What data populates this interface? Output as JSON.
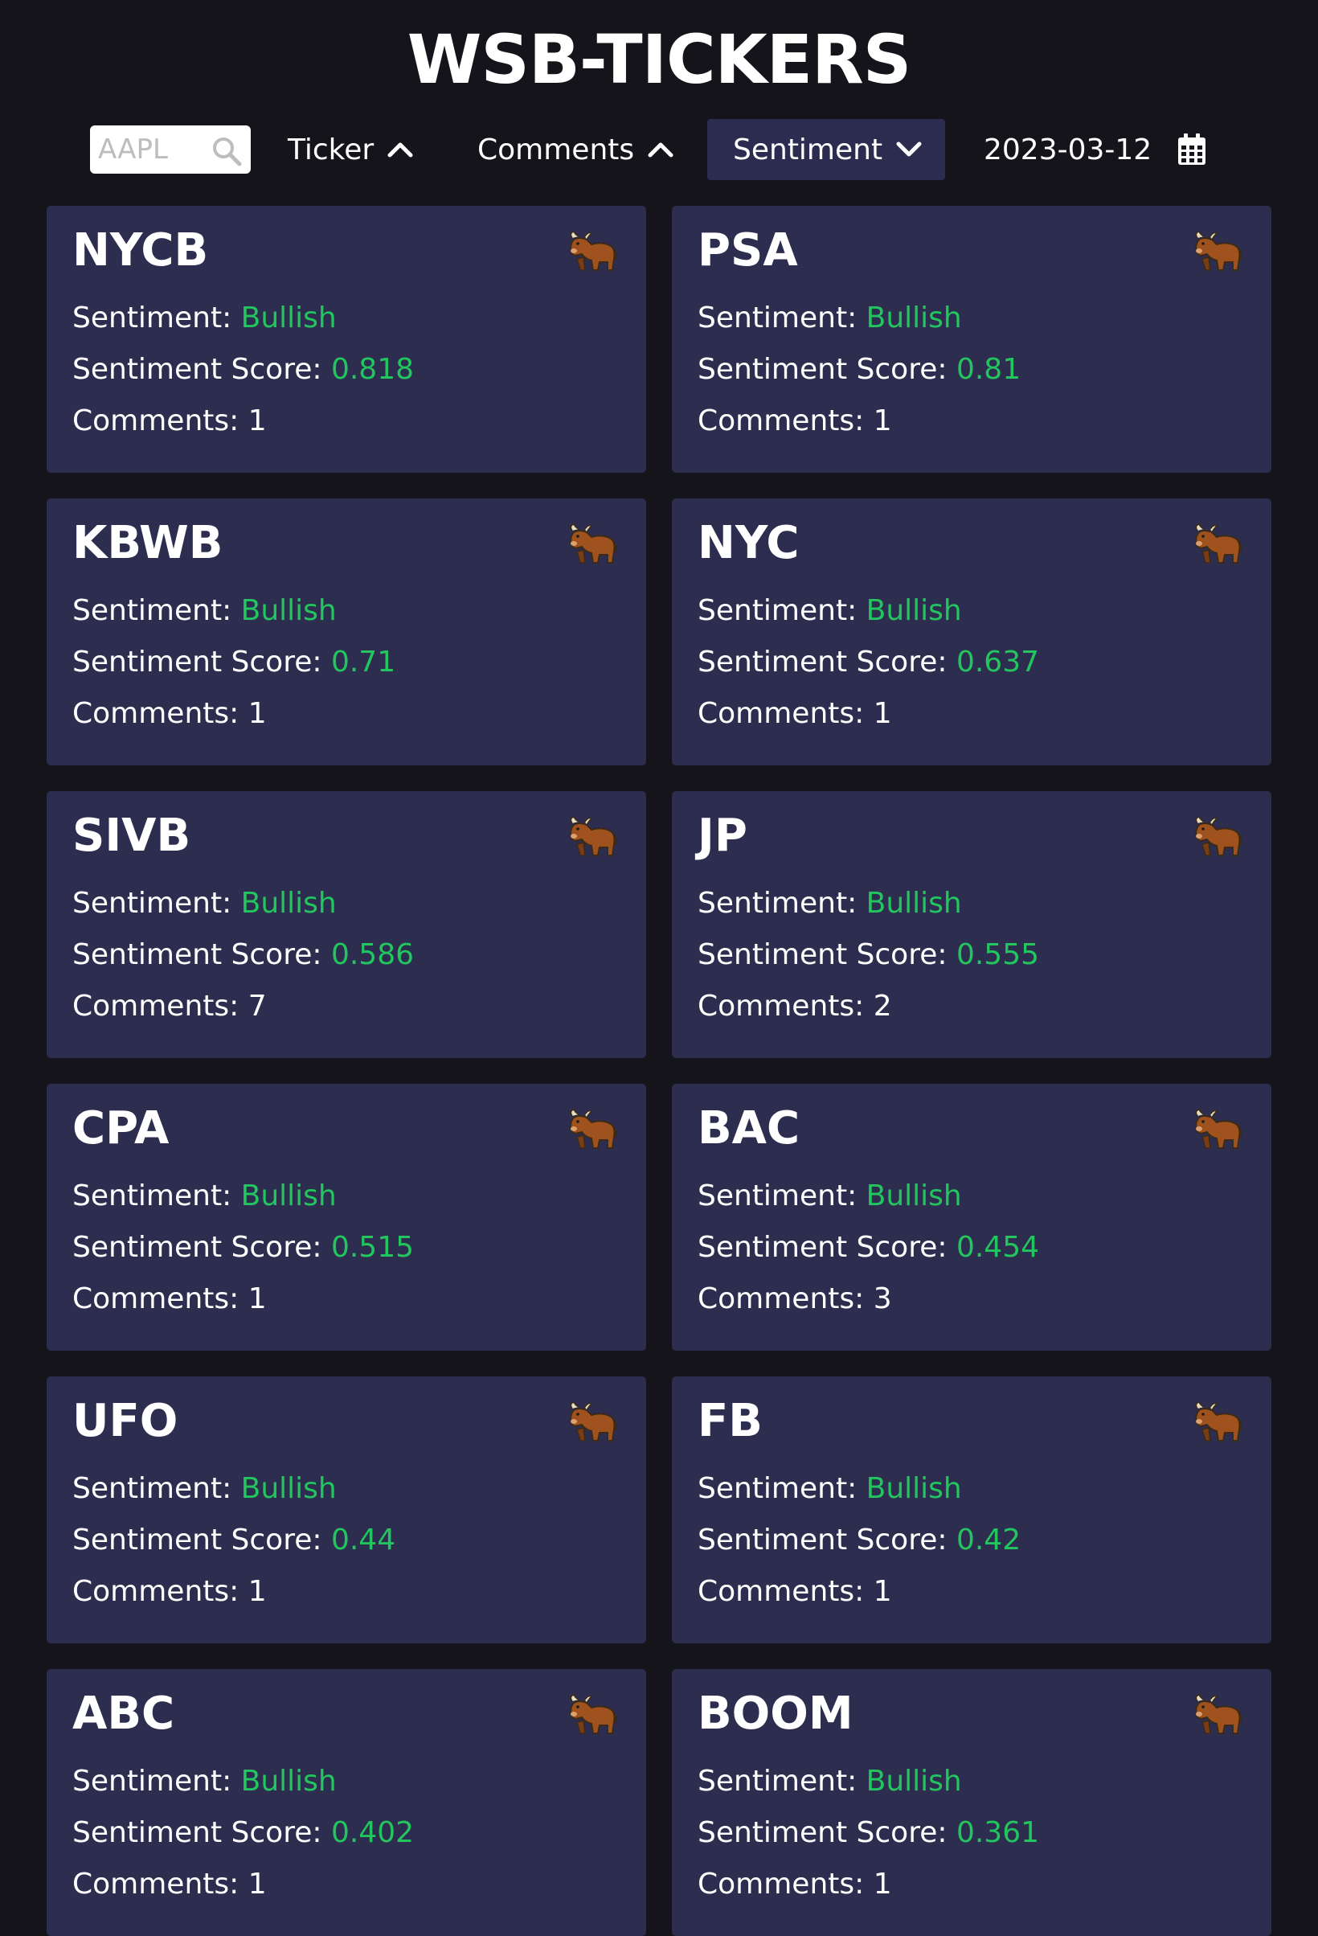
{
  "app": {
    "title": "WSB-TICKERS"
  },
  "toolbar": {
    "search_placeholder": "AAPL",
    "sort_ticker": "Ticker",
    "sort_comments": "Comments",
    "sort_sentiment": "Sentiment",
    "date": "2023-03-12",
    "active_sort": "Sentiment"
  },
  "colors": {
    "background": "#15141b",
    "card": "#2c2d4f",
    "active_sort_bg": "#2c2c50",
    "bullish": "#22c55e"
  },
  "labels": {
    "sentiment": "Sentiment: ",
    "score": "Sentiment Score: ",
    "comments": "Comments: "
  },
  "cards": [
    {
      "ticker": "NYCB",
      "sentiment": "Bullish",
      "score": "0.818",
      "comments": "1",
      "icon": "bull-icon"
    },
    {
      "ticker": "PSA",
      "sentiment": "Bullish",
      "score": "0.81",
      "comments": "1",
      "icon": "bull-icon"
    },
    {
      "ticker": "KBWB",
      "sentiment": "Bullish",
      "score": "0.71",
      "comments": "1",
      "icon": "bull-icon"
    },
    {
      "ticker": "NYC",
      "sentiment": "Bullish",
      "score": "0.637",
      "comments": "1",
      "icon": "bull-icon"
    },
    {
      "ticker": "SIVB",
      "sentiment": "Bullish",
      "score": "0.586",
      "comments": "7",
      "icon": "bull-icon"
    },
    {
      "ticker": "JP",
      "sentiment": "Bullish",
      "score": "0.555",
      "comments": "2",
      "icon": "bull-icon"
    },
    {
      "ticker": "CPA",
      "sentiment": "Bullish",
      "score": "0.515",
      "comments": "1",
      "icon": "bull-icon"
    },
    {
      "ticker": "BAC",
      "sentiment": "Bullish",
      "score": "0.454",
      "comments": "3",
      "icon": "bull-icon"
    },
    {
      "ticker": "UFO",
      "sentiment": "Bullish",
      "score": "0.44",
      "comments": "1",
      "icon": "bull-icon"
    },
    {
      "ticker": "FB",
      "sentiment": "Bullish",
      "score": "0.42",
      "comments": "1",
      "icon": "bull-icon"
    },
    {
      "ticker": "ABC",
      "sentiment": "Bullish",
      "score": "0.402",
      "comments": "1",
      "icon": "bull-icon"
    },
    {
      "ticker": "BOOM",
      "sentiment": "Bullish",
      "score": "0.361",
      "comments": "1",
      "icon": "bull-icon"
    }
  ]
}
